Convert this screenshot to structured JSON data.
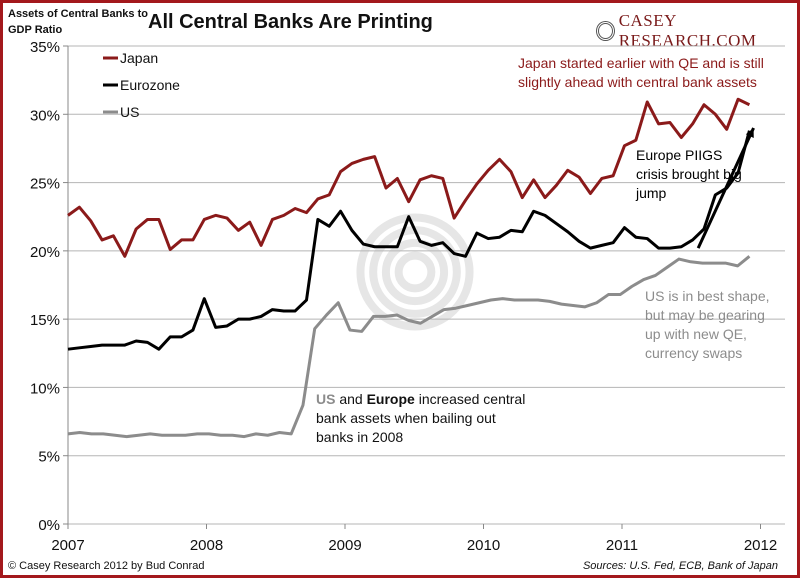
{
  "chart_data": {
    "type": "line",
    "title": "All Central Banks Are Printing",
    "ylabel": "Assets of Central Banks to GDP Ratio",
    "xlabel": "",
    "xlim": [
      2007,
      2012
    ],
    "ylim": [
      0,
      35
    ],
    "xticks": [
      "2007",
      "2008",
      "2009",
      "2010",
      "2011",
      "2012"
    ],
    "yticks": [
      "0%",
      "5%",
      "10%",
      "15%",
      "20%",
      "25%",
      "30%",
      "35%"
    ],
    "grid": "horizontal",
    "legend": "top-left",
    "series": [
      {
        "name": "Japan",
        "color": "#8b1a1a",
        "values": [
          22.6,
          23.2,
          22.2,
          20.8,
          21.1,
          19.6,
          21.6,
          22.3,
          22.3,
          20.1,
          20.8,
          20.8,
          22.3,
          22.6,
          22.4,
          21.5,
          22.1,
          20.4,
          22.3,
          22.6,
          23.1,
          22.8,
          23.8,
          24.1,
          25.8,
          26.4,
          26.7,
          26.9,
          24.6,
          25.3,
          23.6,
          25.2,
          25.5,
          25.3,
          22.4,
          23.7,
          24.9,
          25.9,
          26.7,
          25.8,
          23.9,
          25.2,
          23.9,
          24.8,
          25.9,
          25.4,
          24.2,
          25.3,
          25.5,
          27.7,
          28.1,
          30.9,
          29.3,
          29.4,
          28.3,
          29.3,
          30.7,
          30.0,
          28.9,
          31.1,
          30.7
        ]
      },
      {
        "name": "Eurozone",
        "color": "#000000",
        "values": [
          12.8,
          12.9,
          13.0,
          13.1,
          13.1,
          13.1,
          13.4,
          13.3,
          12.8,
          13.7,
          13.7,
          14.2,
          16.5,
          14.4,
          14.5,
          15.0,
          15.0,
          15.2,
          15.7,
          15.6,
          15.6,
          16.4,
          22.3,
          21.8,
          22.9,
          21.5,
          20.5,
          20.3,
          20.3,
          20.3,
          22.5,
          20.7,
          20.4,
          20.6,
          19.8,
          19.6,
          21.3,
          20.9,
          21.0,
          21.5,
          21.4,
          22.9,
          22.6,
          22.0,
          21.4,
          20.7,
          20.2,
          20.4,
          20.6,
          21.7,
          21.0,
          20.9,
          20.2,
          20.2,
          20.3,
          20.8,
          21.6,
          24.1,
          24.6,
          25.7,
          28.8
        ]
      },
      {
        "name": "US",
        "color": "#8c8c8c",
        "values": [
          6.6,
          6.7,
          6.6,
          6.6,
          6.5,
          6.4,
          6.5,
          6.6,
          6.5,
          6.5,
          6.5,
          6.6,
          6.6,
          6.5,
          6.5,
          6.4,
          6.6,
          6.5,
          6.7,
          6.6,
          8.7,
          14.3,
          15.3,
          16.2,
          14.2,
          14.1,
          15.2,
          15.2,
          15.3,
          14.9,
          14.7,
          15.2,
          15.7,
          15.8,
          16.0,
          16.2,
          16.4,
          16.5,
          16.4,
          16.4,
          16.4,
          16.3,
          16.1,
          16.0,
          15.9,
          16.2,
          16.8,
          16.8,
          17.4,
          17.9,
          18.2,
          18.8,
          19.4,
          19.2,
          19.1,
          19.1,
          19.1,
          18.9,
          19.6
        ]
      }
    ],
    "annotations": [
      {
        "text": "Japan started earlier with QE and is still slightly ahead with central bank assets",
        "color": "#8b1a1a"
      },
      {
        "text": "Europe PIIGS crisis brought big jump",
        "color": "#000000"
      },
      {
        "text": "US is in best shape, but may be gearing up with new QE, currency swaps",
        "color": "#8c8c8c"
      },
      {
        "parts": [
          "US",
          " and ",
          "Europe",
          " increased central bank assets when bailing out banks in 2008"
        ]
      }
    ],
    "trend_arrow": {
      "from": [
        2011.55,
        20.2
      ],
      "to": [
        2011.95,
        29.0
      ]
    }
  },
  "brand": "CASEY RESEARCH.COM",
  "footer": {
    "left": "© Casey Research 2012 by Bud Conrad",
    "right": "Sources:  U.S. Fed, ECB, Bank of Japan"
  }
}
